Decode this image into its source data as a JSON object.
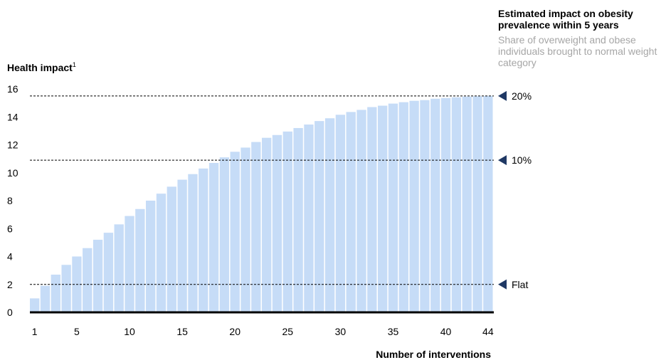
{
  "side_panel": {
    "title": "Estimated impact on obesity prevalence within 5 years",
    "subtitle": "Share of overweight and obese individuals brought to normal weight category"
  },
  "chart_data": {
    "type": "bar",
    "ylabel": "Health impact",
    "ylabel_footnote": "1",
    "xlabel": "Number of interventions",
    "ylim": [
      0,
      16
    ],
    "yticks": [
      0,
      2,
      4,
      6,
      8,
      10,
      12,
      14,
      16
    ],
    "xticks": [
      1,
      5,
      10,
      15,
      20,
      25,
      30,
      35,
      40,
      44
    ],
    "bar_color": "#c6dcf7",
    "categories": [
      1,
      2,
      3,
      4,
      5,
      6,
      7,
      8,
      9,
      10,
      11,
      12,
      13,
      14,
      15,
      16,
      17,
      18,
      19,
      20,
      21,
      22,
      23,
      24,
      25,
      26,
      27,
      28,
      29,
      30,
      31,
      32,
      33,
      34,
      35,
      36,
      37,
      38,
      39,
      40,
      41,
      42,
      43,
      44
    ],
    "values": [
      1.0,
      1.9,
      2.7,
      3.4,
      4.0,
      4.6,
      5.2,
      5.7,
      6.3,
      6.9,
      7.4,
      8.0,
      8.5,
      9.0,
      9.5,
      9.9,
      10.3,
      10.7,
      11.1,
      11.5,
      11.8,
      12.2,
      12.5,
      12.7,
      12.95,
      13.2,
      13.45,
      13.7,
      13.9,
      14.15,
      14.35,
      14.5,
      14.7,
      14.8,
      14.95,
      15.05,
      15.15,
      15.2,
      15.3,
      15.35,
      15.4,
      15.45,
      15.47,
      15.5
    ],
    "reference_lines": [
      {
        "label": "20%",
        "value": 15.5
      },
      {
        "label": "10%",
        "value": 10.9
      },
      {
        "label": "Flat",
        "value": 2.0
      }
    ],
    "grid": false
  }
}
